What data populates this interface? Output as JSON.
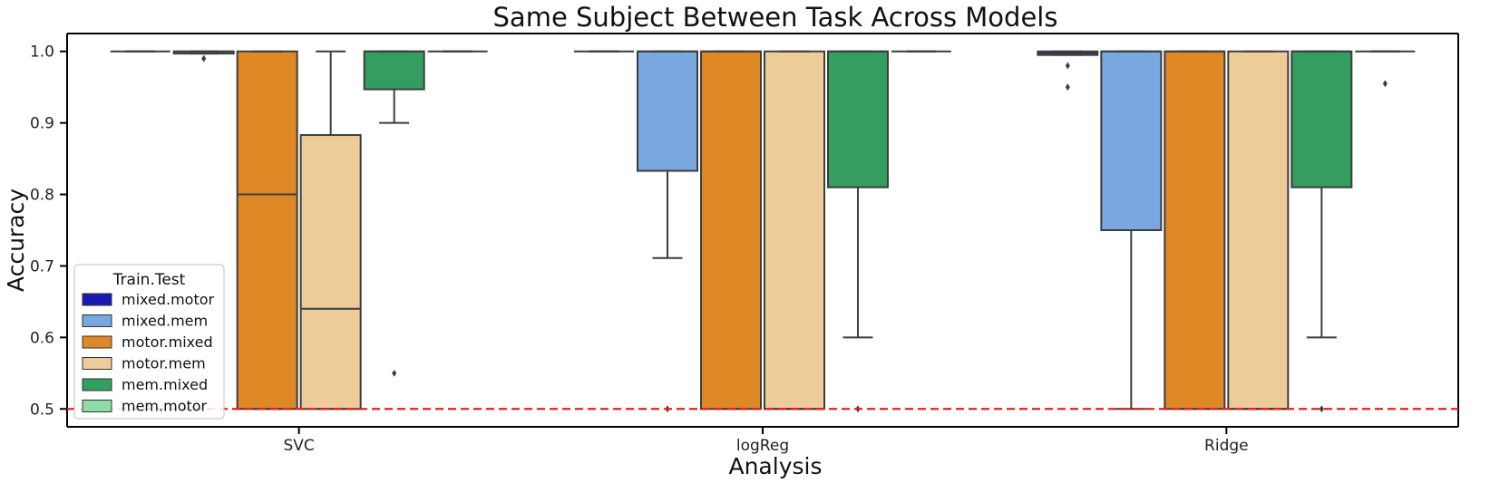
{
  "chart_data": {
    "type": "box",
    "title": "Same Subject Between Task Across Models",
    "xlabel": "Analysis",
    "ylabel": "Accuracy",
    "ylim": [
      0.475,
      1.025
    ],
    "yticks": [
      0.5,
      0.6,
      0.7,
      0.8,
      0.9,
      1.0
    ],
    "ytick_labels": [
      "0.5",
      "0.6",
      "0.7",
      "0.8",
      "0.9",
      "1.0"
    ],
    "categories": [
      "SVC",
      "logReg",
      "Ridge"
    ],
    "reference_line": {
      "y": 0.5,
      "color": "#e8221e",
      "style": "dashed"
    },
    "legend": {
      "title": "Train.Test",
      "placement": "lower-left"
    },
    "series": [
      {
        "name": "mixed.motor",
        "color": "#1a1ab4",
        "boxes": [
          {
            "q1": 1.0,
            "median": 1.0,
            "q3": 1.0,
            "whislo": 1.0,
            "whishi": 1.0,
            "fliers": []
          },
          {
            "q1": 1.0,
            "median": 1.0,
            "q3": 1.0,
            "whislo": 1.0,
            "whishi": 1.0,
            "fliers": []
          },
          {
            "q1": 0.995,
            "median": 0.997,
            "q3": 1.0,
            "whislo": 0.995,
            "whishi": 1.0,
            "fliers": [
              0.98,
              0.95
            ]
          }
        ]
      },
      {
        "name": "mixed.mem",
        "color": "#79a7e0",
        "boxes": [
          {
            "q1": 0.997,
            "median": 1.0,
            "q3": 1.0,
            "whislo": 0.997,
            "whishi": 1.0,
            "fliers": [
              0.99
            ]
          },
          {
            "q1": 0.833,
            "median": 1.0,
            "q3": 1.0,
            "whislo": 0.711,
            "whishi": 1.0,
            "fliers": [
              0.5
            ]
          },
          {
            "q1": 0.75,
            "median": 1.0,
            "q3": 1.0,
            "whislo": 0.5,
            "whishi": 1.0,
            "fliers": []
          }
        ]
      },
      {
        "name": "motor.mixed",
        "color": "#df8826",
        "boxes": [
          {
            "q1": 0.5,
            "median": 0.8,
            "q3": 1.0,
            "whislo": 0.5,
            "whishi": 1.0,
            "fliers": []
          },
          {
            "q1": 0.5,
            "median": 1.0,
            "q3": 1.0,
            "whislo": 0.5,
            "whishi": 1.0,
            "fliers": []
          },
          {
            "q1": 0.5,
            "median": 1.0,
            "q3": 1.0,
            "whislo": 0.5,
            "whishi": 1.0,
            "fliers": []
          }
        ]
      },
      {
        "name": "motor.mem",
        "color": "#eecc99",
        "boxes": [
          {
            "q1": 0.5,
            "median": 0.64,
            "q3": 0.883,
            "whislo": 0.5,
            "whishi": 1.0,
            "fliers": []
          },
          {
            "q1": 0.5,
            "median": 0.5,
            "q3": 1.0,
            "whislo": 0.5,
            "whishi": 1.0,
            "fliers": []
          },
          {
            "q1": 0.5,
            "median": 0.5,
            "q3": 1.0,
            "whislo": 0.5,
            "whishi": 1.0,
            "fliers": []
          }
        ]
      },
      {
        "name": "mem.mixed",
        "color": "#339e5f",
        "boxes": [
          {
            "q1": 0.947,
            "median": 1.0,
            "q3": 1.0,
            "whislo": 0.9,
            "whishi": 1.0,
            "fliers": [
              0.55
            ]
          },
          {
            "q1": 0.81,
            "median": 1.0,
            "q3": 1.0,
            "whislo": 0.6,
            "whishi": 1.0,
            "fliers": [
              0.5
            ]
          },
          {
            "q1": 0.81,
            "median": 1.0,
            "q3": 1.0,
            "whislo": 0.6,
            "whishi": 1.0,
            "fliers": [
              0.5
            ]
          }
        ]
      },
      {
        "name": "mem.motor",
        "color": "#8fdca5",
        "boxes": [
          {
            "q1": 1.0,
            "median": 1.0,
            "q3": 1.0,
            "whislo": 1.0,
            "whishi": 1.0,
            "fliers": []
          },
          {
            "q1": 1.0,
            "median": 1.0,
            "q3": 1.0,
            "whislo": 1.0,
            "whishi": 1.0,
            "fliers": []
          },
          {
            "q1": 1.0,
            "median": 1.0,
            "q3": 1.0,
            "whislo": 1.0,
            "whishi": 1.0,
            "fliers": [
              0.955
            ]
          }
        ]
      }
    ]
  }
}
